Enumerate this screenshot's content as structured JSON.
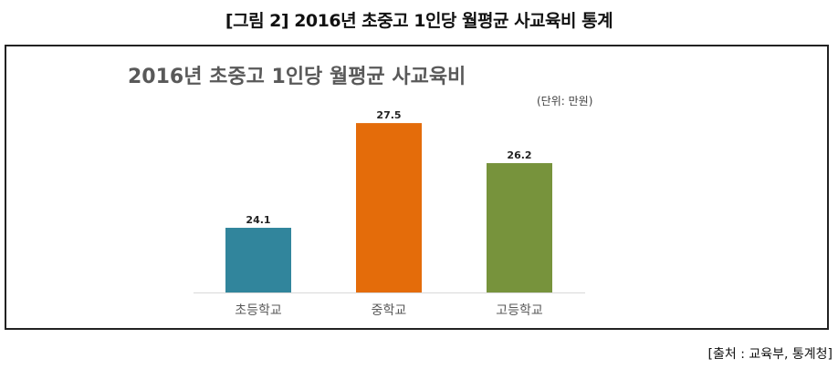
{
  "caption": "[그림 2] 2016년 초중고 1인당 월평균 사교육비 통계",
  "source": "[출처 : 교육부, 통계청]",
  "chart_data": {
    "type": "bar",
    "title": "2016년 초중고 1인당 월평균 사교육비",
    "unit": "(단위: 만원)",
    "categories": [
      "초등학교",
      "중학교",
      "고등학교"
    ],
    "values": [
      24.1,
      27.5,
      26.2
    ],
    "value_labels": [
      "24.1",
      "27.5",
      "26.2"
    ],
    "colors": [
      "#31859C",
      "#E46C0A",
      "#77933C"
    ],
    "xlabel": "",
    "ylabel": "",
    "ylim": [
      22,
      28
    ],
    "grid": false,
    "legend": "none"
  }
}
